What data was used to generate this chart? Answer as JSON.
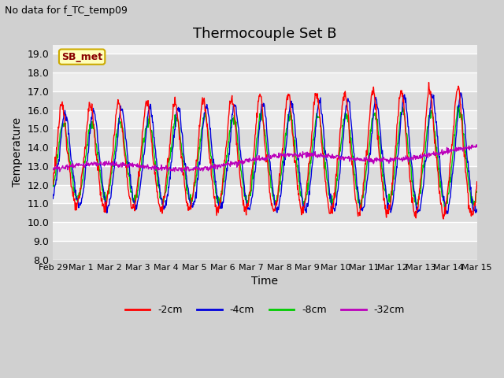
{
  "title": "Thermocouple Set B",
  "subtitle": "No data for f_TC_temp09",
  "xlabel": "Time",
  "ylabel": "Temperature",
  "ylim": [
    8.0,
    19.5
  ],
  "yticks": [
    8.0,
    9.0,
    10.0,
    11.0,
    12.0,
    13.0,
    14.0,
    15.0,
    16.0,
    17.0,
    18.0,
    19.0
  ],
  "plot_bg_color": "#e8e8e8",
  "fig_bg_color": "#d8d8d8",
  "legend_items": [
    "-2cm",
    "-4cm",
    "-8cm",
    "-32cm"
  ],
  "series_colors": [
    "#ff0000",
    "#0000dd",
    "#00cc00",
    "#bb00bb"
  ],
  "sb_met_label": "SB_met",
  "sb_met_fg": "#880000",
  "sb_met_bg": "#ffffbb",
  "sb_met_edge": "#ccaa00",
  "x_tick_labels": [
    "Feb 29",
    "Mar 1",
    "Mar 2",
    "Mar 3",
    "Mar 4",
    "Mar 5",
    "Mar 6",
    "Mar 7",
    "Mar 8",
    "Mar 9",
    "Mar 10",
    "Mar 11",
    "Mar 12",
    "Mar 13",
    "Mar 14",
    "Mar 15"
  ],
  "title_fontsize": 13,
  "label_fontsize": 10,
  "tick_fontsize": 9,
  "subtitle_fontsize": 9
}
